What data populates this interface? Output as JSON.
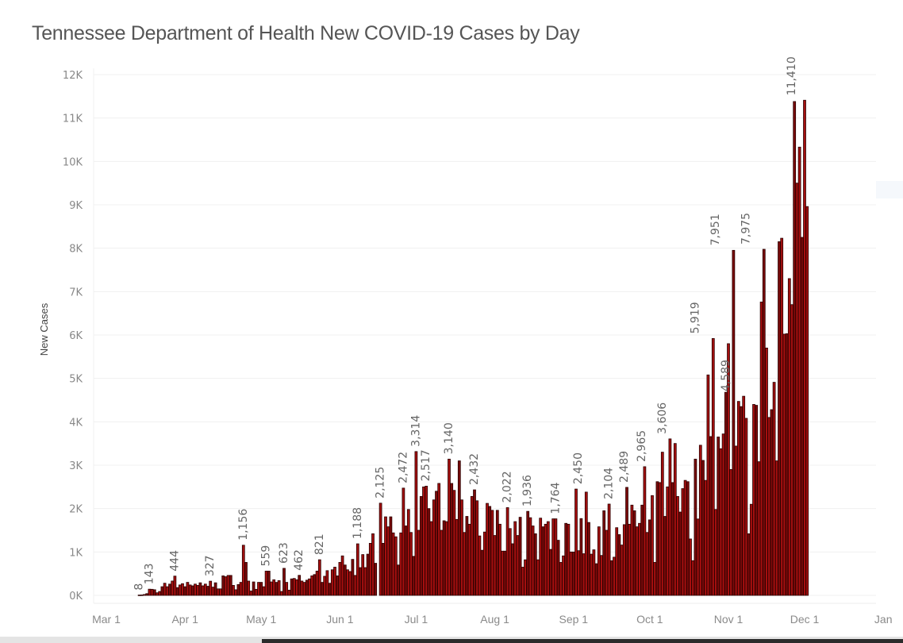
{
  "chart_data": {
    "type": "bar",
    "title": "Tennessee Department of Health New COVID-19 Cases by Day",
    "xlabel": "",
    "ylabel": "New Cases",
    "ylim": [
      0,
      12000
    ],
    "yticks": [
      0,
      1000,
      2000,
      3000,
      4000,
      5000,
      6000,
      7000,
      8000,
      9000,
      10000,
      11000,
      12000
    ],
    "ytick_labels": [
      "0K",
      "1K",
      "2K",
      "3K",
      "4K",
      "5K",
      "6K",
      "7K",
      "8K",
      "9K",
      "10K",
      "11K",
      "12K"
    ],
    "xticks": [
      {
        "label": "Mar 1",
        "day": 0
      },
      {
        "label": "Apr 1",
        "day": 31
      },
      {
        "label": "May 1",
        "day": 61
      },
      {
        "label": "Jun 1",
        "day": 92
      },
      {
        "label": "Jul 1",
        "day": 122
      },
      {
        "label": "Aug 1",
        "day": 153
      },
      {
        "label": "Sep 1",
        "day": 184
      },
      {
        "label": "Oct 1",
        "day": 214
      },
      {
        "label": "Nov 1",
        "day": 245
      },
      {
        "label": "Dec 1",
        "day": 275
      },
      {
        "label": "Jan",
        "day": 306
      }
    ],
    "grid": true,
    "bar_color": "#a50f0f",
    "bar_outline": "#2a0000",
    "start_day": 13,
    "start_date": "Mar 14",
    "values": [
      8,
      10,
      20,
      40,
      143,
      140,
      130,
      60,
      90,
      200,
      280,
      200,
      260,
      330,
      444,
      180,
      240,
      270,
      200,
      300,
      240,
      220,
      260,
      230,
      290,
      220,
      260,
      210,
      327,
      190,
      290,
      150,
      150,
      450,
      430,
      460,
      460,
      230,
      130,
      250,
      300,
      1156,
      760,
      330,
      100,
      310,
      140,
      300,
      300,
      200,
      559,
      559,
      310,
      360,
      300,
      340,
      90,
      623,
      300,
      120,
      380,
      390,
      360,
      462,
      330,
      300,
      350,
      380,
      450,
      480,
      560,
      821,
      300,
      440,
      570,
      280,
      590,
      650,
      450,
      760,
      910,
      700,
      590,
      550,
      830,
      460,
      1188,
      640,
      940,
      640,
      950,
      1200,
      1420,
      740,
      0,
      2125,
      1200,
      1810,
      1580,
      1810,
      1440,
      1350,
      700,
      1440,
      2472,
      1600,
      1980,
      1450,
      900,
      3314,
      1500,
      2280,
      2500,
      2517,
      2000,
      1700,
      2200,
      2400,
      2580,
      1500,
      1720,
      1700,
      3140,
      2580,
      2420,
      1750,
      3100,
      2200,
      1450,
      1820,
      1640,
      2280,
      2432,
      2180,
      1370,
      1040,
      1460,
      2120,
      2050,
      1960,
      1380,
      1960,
      1640,
      1020,
      1020,
      2022,
      1540,
      1190,
      1700,
      1380,
      1800,
      650,
      820,
      1936,
      1790,
      1600,
      1420,
      820,
      1780,
      1580,
      1640,
      1700,
      1060,
      1764,
      1764,
      1270,
      760,
      910,
      1660,
      1640,
      1000,
      1000,
      2450,
      1030,
      1770,
      960,
      2380,
      1680,
      950,
      1050,
      730,
      1580,
      920,
      1950,
      1500,
      2104,
      800,
      880,
      1560,
      1400,
      1160,
      1630,
      2489,
      1640,
      2080,
      1950,
      1580,
      1660,
      2080,
      2965,
      1450,
      1740,
      2300,
      760,
      2620,
      2600,
      3300,
      1820,
      2500,
      3606,
      2600,
      3500,
      2280,
      1920,
      2460,
      2650,
      2620,
      1300,
      800,
      3140,
      1760,
      3460,
      3110,
      2650,
      5080,
      3660,
      5919,
      1980,
      3650,
      3380,
      3720,
      4680,
      5800,
      2900,
      7951,
      3440,
      4470,
      4350,
      4589,
      4080,
      1420,
      2100,
      4400,
      4380,
      3080,
      6760,
      7975,
      5700,
      4100,
      4280,
      4910,
      3100,
      8150,
      8230,
      6020,
      6030,
      7300,
      6700,
      11380,
      9500,
      10330,
      8250,
      11410,
      8960
    ],
    "data_labels": [
      {
        "date": "Mar 14",
        "value": 8,
        "text": "8"
      },
      {
        "date": "Mar 18",
        "value": 143,
        "text": "143"
      },
      {
        "date": "Mar 28",
        "value": 444,
        "text": "444"
      },
      {
        "date": "Apr 11",
        "value": 327,
        "text": "327"
      },
      {
        "date": "Apr 24",
        "value": 1156,
        "text": "1,156"
      },
      {
        "date": "May 3",
        "value": 559,
        "text": "559"
      },
      {
        "date": "May 10",
        "value": 623,
        "text": "623"
      },
      {
        "date": "May 16",
        "value": 462,
        "text": "462"
      },
      {
        "date": "May 24",
        "value": 821,
        "text": "821"
      },
      {
        "date": "Jun 8",
        "value": 1188,
        "text": "1,188"
      },
      {
        "date": "Jun 17",
        "value": 2125,
        "text": "2,125"
      },
      {
        "date": "Jun 26",
        "value": 2472,
        "text": "2,472"
      },
      {
        "date": "Jul 1",
        "value": 3314,
        "text": "3,314"
      },
      {
        "date": "Jul 5",
        "value": 2517,
        "text": "2,517"
      },
      {
        "date": "Jul 14",
        "value": 3140,
        "text": "3,140"
      },
      {
        "date": "Jul 24",
        "value": 2432,
        "text": "2,432"
      },
      {
        "date": "Aug 6",
        "value": 2022,
        "text": "2,022"
      },
      {
        "date": "Aug 14",
        "value": 1936,
        "text": "1,936"
      },
      {
        "date": "Aug 25",
        "value": 1764,
        "text": "1,764"
      },
      {
        "date": "Sep 3",
        "value": 2450,
        "text": "2,450"
      },
      {
        "date": "Sep 15",
        "value": 2104,
        "text": "2,104"
      },
      {
        "date": "Sep 21",
        "value": 2489,
        "text": "2,489"
      },
      {
        "date": "Sep 28",
        "value": 2965,
        "text": "2,965"
      },
      {
        "date": "Oct 6",
        "value": 3606,
        "text": "3,606"
      },
      {
        "date": "Oct 19",
        "value": 5919,
        "text": "5,919"
      },
      {
        "date": "Oct 27",
        "value": 7951,
        "text": "7,951"
      },
      {
        "date": "Oct 31",
        "value": 4589,
        "text": "4,589"
      },
      {
        "date": "Nov 8",
        "value": 7975,
        "text": "7,975"
      },
      {
        "date": "Nov 26",
        "value": 11410,
        "text": "11,410"
      }
    ]
  }
}
